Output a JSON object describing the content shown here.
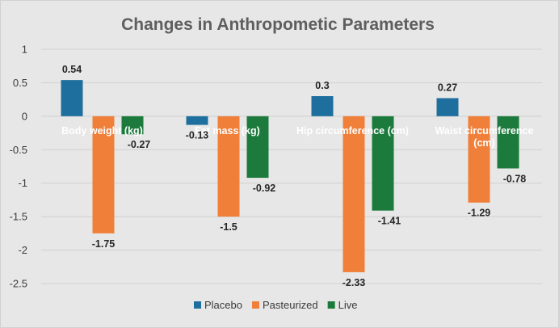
{
  "chart_data": {
    "type": "bar",
    "title": "Changes in Anthropometic Parameters",
    "categories": [
      "Body weight (kg)",
      "Fat mass (kg)",
      "Hip circumference (cm)",
      "Waist circumference (cm)"
    ],
    "series": [
      {
        "name": "Placebo",
        "color": "#1f6f9e",
        "values": [
          0.54,
          -0.13,
          0.3,
          0.27
        ],
        "labels": [
          "0.54",
          "-0.13",
          "0.3",
          "0.27"
        ]
      },
      {
        "name": "Pasteurized",
        "color": "#f07f39",
        "values": [
          -1.75,
          -1.5,
          -2.33,
          -1.29
        ],
        "labels": [
          "-1.75",
          "-1.5",
          "-2.33",
          "-1.29"
        ]
      },
      {
        "name": "Live",
        "color": "#1c7a3c",
        "values": [
          -0.27,
          -0.92,
          -1.41,
          -0.78
        ],
        "labels": [
          "-0.27",
          "-0.92",
          "-1.41",
          "-0.78"
        ]
      }
    ],
    "ylim": [
      -2.5,
      1
    ],
    "yticks": [
      1,
      0.5,
      0,
      -0.5,
      -1,
      -1.5,
      -2,
      -2.5
    ],
    "ytick_labels": [
      "1",
      "0.5",
      "0",
      "-0.5",
      "-1",
      "-1.5",
      "-2",
      "-2.5"
    ],
    "grid": true,
    "legend": "bottom"
  }
}
